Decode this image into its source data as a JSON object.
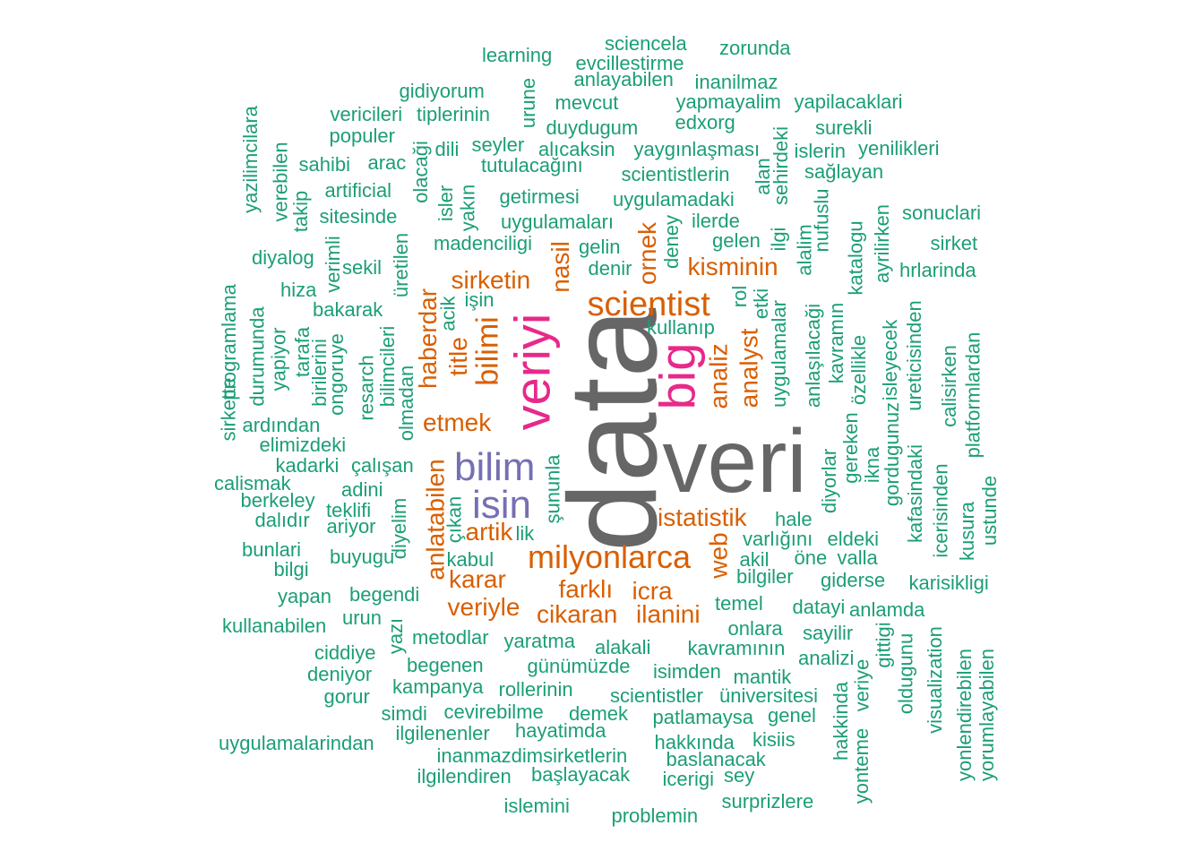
{
  "palette": {
    "c1": "#1b9e77",
    "c2": "#d95f02",
    "c3": "#7570b3",
    "c4": "#e7298a",
    "c5": "#666666"
  },
  "words": [
    {
      "text": "data",
      "color": "c5",
      "weight": 5
    },
    {
      "text": "veri",
      "color": "c5",
      "weight": 4
    },
    {
      "text": "veriyi",
      "color": "c4",
      "weight": 3
    },
    {
      "text": "big",
      "color": "c4",
      "weight": 3
    },
    {
      "text": "bilim",
      "color": "c3",
      "weight": 3
    },
    {
      "text": "isin",
      "color": "c3",
      "weight": 3
    },
    {
      "text": "scientist",
      "color": "c2",
      "weight": 2
    },
    {
      "text": "milyonlarca",
      "color": "c2",
      "weight": 2
    },
    {
      "text": "bilimi",
      "color": "c2",
      "weight": 2
    },
    {
      "text": "sirketin",
      "color": "c2",
      "weight": 2
    },
    {
      "text": "kisminin",
      "color": "c2",
      "weight": 2
    },
    {
      "text": "nasil",
      "color": "c2",
      "weight": 2
    },
    {
      "text": "ornek",
      "color": "c2",
      "weight": 2
    },
    {
      "text": "haberdar",
      "color": "c2",
      "weight": 2
    },
    {
      "text": "title",
      "color": "c2",
      "weight": 2
    },
    {
      "text": "analiz",
      "color": "c2",
      "weight": 2
    },
    {
      "text": "analyst",
      "color": "c2",
      "weight": 2
    },
    {
      "text": "etmek",
      "color": "c2",
      "weight": 2
    },
    {
      "text": "istatistik",
      "color": "c2",
      "weight": 2
    },
    {
      "text": "anlatabilen",
      "color": "c2",
      "weight": 2
    },
    {
      "text": "artik",
      "color": "c2",
      "weight": 2
    },
    {
      "text": "karar",
      "color": "c2",
      "weight": 2
    },
    {
      "text": "web",
      "color": "c2",
      "weight": 2
    },
    {
      "text": "farklı",
      "color": "c2",
      "weight": 2
    },
    {
      "text": "icra",
      "color": "c2",
      "weight": 2
    },
    {
      "text": "veriyle",
      "color": "c2",
      "weight": 2
    },
    {
      "text": "cikaran",
      "color": "c2",
      "weight": 2
    },
    {
      "text": "ilanini",
      "color": "c2",
      "weight": 2
    },
    {
      "text": "learning",
      "color": "c1",
      "weight": 1
    },
    {
      "text": "sciencela",
      "color": "c1",
      "weight": 1
    },
    {
      "text": "zorunda",
      "color": "c1",
      "weight": 1
    },
    {
      "text": "evcillestirme",
      "color": "c1",
      "weight": 1
    },
    {
      "text": "anlayabilen",
      "color": "c1",
      "weight": 1
    },
    {
      "text": "inanilmaz",
      "color": "c1",
      "weight": 1
    },
    {
      "text": "gidiyorum",
      "color": "c1",
      "weight": 1
    },
    {
      "text": "urune",
      "color": "c1",
      "weight": 1
    },
    {
      "text": "mevcut",
      "color": "c1",
      "weight": 1
    },
    {
      "text": "yapmayalim",
      "color": "c1",
      "weight": 1
    },
    {
      "text": "yapilacaklari",
      "color": "c1",
      "weight": 1
    },
    {
      "text": "vericileri",
      "color": "c1",
      "weight": 1
    },
    {
      "text": "tiplerinin",
      "color": "c1",
      "weight": 1
    },
    {
      "text": "edxorg",
      "color": "c1",
      "weight": 1
    },
    {
      "text": "duydugum",
      "color": "c1",
      "weight": 1
    },
    {
      "text": "surekli",
      "color": "c1",
      "weight": 1
    },
    {
      "text": "yazilimcilara",
      "color": "c1",
      "weight": 1
    },
    {
      "text": "populer",
      "color": "c1",
      "weight": 1
    },
    {
      "text": "seyler",
      "color": "c1",
      "weight": 1
    },
    {
      "text": "alıcaksin",
      "color": "c1",
      "weight": 1
    },
    {
      "text": "yaygınlaşması",
      "color": "c1",
      "weight": 1
    },
    {
      "text": "sehirdeki",
      "color": "c1",
      "weight": 1
    },
    {
      "text": "islerin",
      "color": "c1",
      "weight": 1
    },
    {
      "text": "yenilikleri",
      "color": "c1",
      "weight": 1
    },
    {
      "text": "dili",
      "color": "c1",
      "weight": 1
    },
    {
      "text": "olacaği",
      "color": "c1",
      "weight": 1
    },
    {
      "text": "tutulacağını",
      "color": "c1",
      "weight": 1
    },
    {
      "text": "verebilen",
      "color": "c1",
      "weight": 1
    },
    {
      "text": "sahibi",
      "color": "c1",
      "weight": 1
    },
    {
      "text": "arac",
      "color": "c1",
      "weight": 1
    },
    {
      "text": "scientistlerin",
      "color": "c1",
      "weight": 1
    },
    {
      "text": "sağlayan",
      "color": "c1",
      "weight": 1
    },
    {
      "text": "artificial",
      "color": "c1",
      "weight": 1
    },
    {
      "text": "isler",
      "color": "c1",
      "weight": 1
    },
    {
      "text": "getirmesi",
      "color": "c1",
      "weight": 1
    },
    {
      "text": "alan",
      "color": "c1",
      "weight": 1
    },
    {
      "text": "takip",
      "color": "c1",
      "weight": 1
    },
    {
      "text": "yakın",
      "color": "c1",
      "weight": 1
    },
    {
      "text": "uygulamadaki",
      "color": "c1",
      "weight": 1
    },
    {
      "text": "sitesinde",
      "color": "c1",
      "weight": 1
    },
    {
      "text": "uygulamaları",
      "color": "c1",
      "weight": 1
    },
    {
      "text": "ilerde",
      "color": "c1",
      "weight": 1
    },
    {
      "text": "sonuclari",
      "color": "c1",
      "weight": 1
    },
    {
      "text": "ilgi",
      "color": "c1",
      "weight": 1
    },
    {
      "text": "nufuslu",
      "color": "c1",
      "weight": 1
    },
    {
      "text": "ayrilirken",
      "color": "c1",
      "weight": 1
    },
    {
      "text": "verimli",
      "color": "c1",
      "weight": 1
    },
    {
      "text": "deney",
      "color": "c1",
      "weight": 1
    },
    {
      "text": "gelen",
      "color": "c1",
      "weight": 1
    },
    {
      "text": "madenciligi",
      "color": "c1",
      "weight": 1
    },
    {
      "text": "gelin",
      "color": "c1",
      "weight": 1
    },
    {
      "text": "katalogu",
      "color": "c1",
      "weight": 1
    },
    {
      "text": "sirket",
      "color": "c1",
      "weight": 1
    },
    {
      "text": "programlama",
      "color": "c1",
      "weight": 1
    },
    {
      "text": "diyalog",
      "color": "c1",
      "weight": 1
    },
    {
      "text": "alalim",
      "color": "c1",
      "weight": 1
    },
    {
      "text": "üretilen",
      "color": "c1",
      "weight": 1
    },
    {
      "text": "sekil",
      "color": "c1",
      "weight": 1
    },
    {
      "text": "denir",
      "color": "c1",
      "weight": 1
    },
    {
      "text": "hrlarinda",
      "color": "c1",
      "weight": 1
    },
    {
      "text": "hiza",
      "color": "c1",
      "weight": 1
    },
    {
      "text": "rol",
      "color": "c1",
      "weight": 1
    },
    {
      "text": "etki",
      "color": "c1",
      "weight": 1
    },
    {
      "text": "işin",
      "color": "c1",
      "weight": 1
    },
    {
      "text": "bakarak",
      "color": "c1",
      "weight": 1
    },
    {
      "text": "acik",
      "color": "c1",
      "weight": 1
    },
    {
      "text": "durumunda",
      "color": "c1",
      "weight": 1
    },
    {
      "text": "anlaşılacaği",
      "color": "c1",
      "weight": 1
    },
    {
      "text": "kullanıp",
      "color": "c1",
      "weight": 1
    },
    {
      "text": "isleyecek",
      "color": "c1",
      "weight": 1
    },
    {
      "text": "ureticisinden",
      "color": "c1",
      "weight": 1
    },
    {
      "text": "yapiyor",
      "color": "c1",
      "weight": 1
    },
    {
      "text": "tarafa",
      "color": "c1",
      "weight": 1
    },
    {
      "text": "kavramın",
      "color": "c1",
      "weight": 1
    },
    {
      "text": "bilimcileri",
      "color": "c1",
      "weight": 1
    },
    {
      "text": "uygulamalar",
      "color": "c1",
      "weight": 1
    },
    {
      "text": "birilerini",
      "color": "c1",
      "weight": 1
    },
    {
      "text": "ongoruye",
      "color": "c1",
      "weight": 1
    },
    {
      "text": "resarch",
      "color": "c1",
      "weight": 1
    },
    {
      "text": "özellikle",
      "color": "c1",
      "weight": 1
    },
    {
      "text": "platformlardan",
      "color": "c1",
      "weight": 1
    },
    {
      "text": "calisirken",
      "color": "c1",
      "weight": 1
    },
    {
      "text": "sirkette",
      "color": "c1",
      "weight": 1
    },
    {
      "text": "olmadan",
      "color": "c1",
      "weight": 1
    },
    {
      "text": "gordugunuz",
      "color": "c1",
      "weight": 1
    },
    {
      "text": "ardından",
      "color": "c1",
      "weight": 1
    },
    {
      "text": "elimizdeki",
      "color": "c1",
      "weight": 1
    },
    {
      "text": "kafasindaki",
      "color": "c1",
      "weight": 1
    },
    {
      "text": "gereken",
      "color": "c1",
      "weight": 1
    },
    {
      "text": "diyorlar",
      "color": "c1",
      "weight": 1
    },
    {
      "text": "kadarki",
      "color": "c1",
      "weight": 1
    },
    {
      "text": "çalışan",
      "color": "c1",
      "weight": 1
    },
    {
      "text": "ikna",
      "color": "c1",
      "weight": 1
    },
    {
      "text": "şununla",
      "color": "c1",
      "weight": 1
    },
    {
      "text": "calismak",
      "color": "c1",
      "weight": 1
    },
    {
      "text": "icerisinden",
      "color": "c1",
      "weight": 1
    },
    {
      "text": "ustunde",
      "color": "c1",
      "weight": 1
    },
    {
      "text": "adini",
      "color": "c1",
      "weight": 1
    },
    {
      "text": "berkeley",
      "color": "c1",
      "weight": 1
    },
    {
      "text": "teklifi",
      "color": "c1",
      "weight": 1
    },
    {
      "text": "diyelim",
      "color": "c1",
      "weight": 1
    },
    {
      "text": "çıkan",
      "color": "c1",
      "weight": 1
    },
    {
      "text": "hale",
      "color": "c1",
      "weight": 1
    },
    {
      "text": "kusura",
      "color": "c1",
      "weight": 1
    },
    {
      "text": "dalıdır",
      "color": "c1",
      "weight": 1
    },
    {
      "text": "ariyor",
      "color": "c1",
      "weight": 1
    },
    {
      "text": "lik",
      "color": "c1",
      "weight": 1
    },
    {
      "text": "varlığını",
      "color": "c1",
      "weight": 1
    },
    {
      "text": "eldeki",
      "color": "c1",
      "weight": 1
    },
    {
      "text": "bunlari",
      "color": "c1",
      "weight": 1
    },
    {
      "text": "buyugu",
      "color": "c1",
      "weight": 1
    },
    {
      "text": "kabul",
      "color": "c1",
      "weight": 1
    },
    {
      "text": "akil",
      "color": "c1",
      "weight": 1
    },
    {
      "text": "öne",
      "color": "c1",
      "weight": 1
    },
    {
      "text": "valla",
      "color": "c1",
      "weight": 1
    },
    {
      "text": "bilgi",
      "color": "c1",
      "weight": 1
    },
    {
      "text": "bilgiler",
      "color": "c1",
      "weight": 1
    },
    {
      "text": "giderse",
      "color": "c1",
      "weight": 1
    },
    {
      "text": "karisikligi",
      "color": "c1",
      "weight": 1
    },
    {
      "text": "yapan",
      "color": "c1",
      "weight": 1
    },
    {
      "text": "begendi",
      "color": "c1",
      "weight": 1
    },
    {
      "text": "temel",
      "color": "c1",
      "weight": 1
    },
    {
      "text": "datayi",
      "color": "c1",
      "weight": 1
    },
    {
      "text": "anlamda",
      "color": "c1",
      "weight": 1
    },
    {
      "text": "urun",
      "color": "c1",
      "weight": 1
    },
    {
      "text": "kullanabilen",
      "color": "c1",
      "weight": 1
    },
    {
      "text": "yazı",
      "color": "c1",
      "weight": 1
    },
    {
      "text": "onlara",
      "color": "c1",
      "weight": 1
    },
    {
      "text": "gittigi",
      "color": "c1",
      "weight": 1
    },
    {
      "text": "visualization",
      "color": "c1",
      "weight": 1
    },
    {
      "text": "metodlar",
      "color": "c1",
      "weight": 1
    },
    {
      "text": "yaratma",
      "color": "c1",
      "weight": 1
    },
    {
      "text": "sayilir",
      "color": "c1",
      "weight": 1
    },
    {
      "text": "oldugunu",
      "color": "c1",
      "weight": 1
    },
    {
      "text": "ciddiye",
      "color": "c1",
      "weight": 1
    },
    {
      "text": "alakali",
      "color": "c1",
      "weight": 1
    },
    {
      "text": "kavramının",
      "color": "c1",
      "weight": 1
    },
    {
      "text": "analizi",
      "color": "c1",
      "weight": 1
    },
    {
      "text": "yonlendirebilen",
      "color": "c1",
      "weight": 1
    },
    {
      "text": "yorumlayabilen",
      "color": "c1",
      "weight": 1
    },
    {
      "text": "begenen",
      "color": "c1",
      "weight": 1
    },
    {
      "text": "günümüzde",
      "color": "c1",
      "weight": 1
    },
    {
      "text": "isimden",
      "color": "c1",
      "weight": 1
    },
    {
      "text": "deniyor",
      "color": "c1",
      "weight": 1
    },
    {
      "text": "mantik",
      "color": "c1",
      "weight": 1
    },
    {
      "text": "veriye",
      "color": "c1",
      "weight": 1
    },
    {
      "text": "kampanya",
      "color": "c1",
      "weight": 1
    },
    {
      "text": "rollerinin",
      "color": "c1",
      "weight": 1
    },
    {
      "text": "gorur",
      "color": "c1",
      "weight": 1
    },
    {
      "text": "scientistler",
      "color": "c1",
      "weight": 1
    },
    {
      "text": "üniversitesi",
      "color": "c1",
      "weight": 1
    },
    {
      "text": "hakkinda",
      "color": "c1",
      "weight": 1
    },
    {
      "text": "simdi",
      "color": "c1",
      "weight": 1
    },
    {
      "text": "cevirebilme",
      "color": "c1",
      "weight": 1
    },
    {
      "text": "demek",
      "color": "c1",
      "weight": 1
    },
    {
      "text": "patlamaysa",
      "color": "c1",
      "weight": 1
    },
    {
      "text": "genel",
      "color": "c1",
      "weight": 1
    },
    {
      "text": "yonteme",
      "color": "c1",
      "weight": 1
    },
    {
      "text": "ilgilenenler",
      "color": "c1",
      "weight": 1
    },
    {
      "text": "hayatimda",
      "color": "c1",
      "weight": 1
    },
    {
      "text": "kisiis",
      "color": "c1",
      "weight": 1
    },
    {
      "text": "uygulamalarindan",
      "color": "c1",
      "weight": 1
    },
    {
      "text": "hakkında",
      "color": "c1",
      "weight": 1
    },
    {
      "text": "inanmazdimsirketlerin",
      "color": "c1",
      "weight": 1
    },
    {
      "text": "baslanacak",
      "color": "c1",
      "weight": 1
    },
    {
      "text": "ilgilendiren",
      "color": "c1",
      "weight": 1
    },
    {
      "text": "başlayacak",
      "color": "c1",
      "weight": 1
    },
    {
      "text": "sey",
      "color": "c1",
      "weight": 1
    },
    {
      "text": "icerigi",
      "color": "c1",
      "weight": 1
    },
    {
      "text": "surprizlere",
      "color": "c1",
      "weight": 1
    },
    {
      "text": "islemini",
      "color": "c1",
      "weight": 1
    },
    {
      "text": "problemin",
      "color": "c1",
      "weight": 1
    }
  ]
}
